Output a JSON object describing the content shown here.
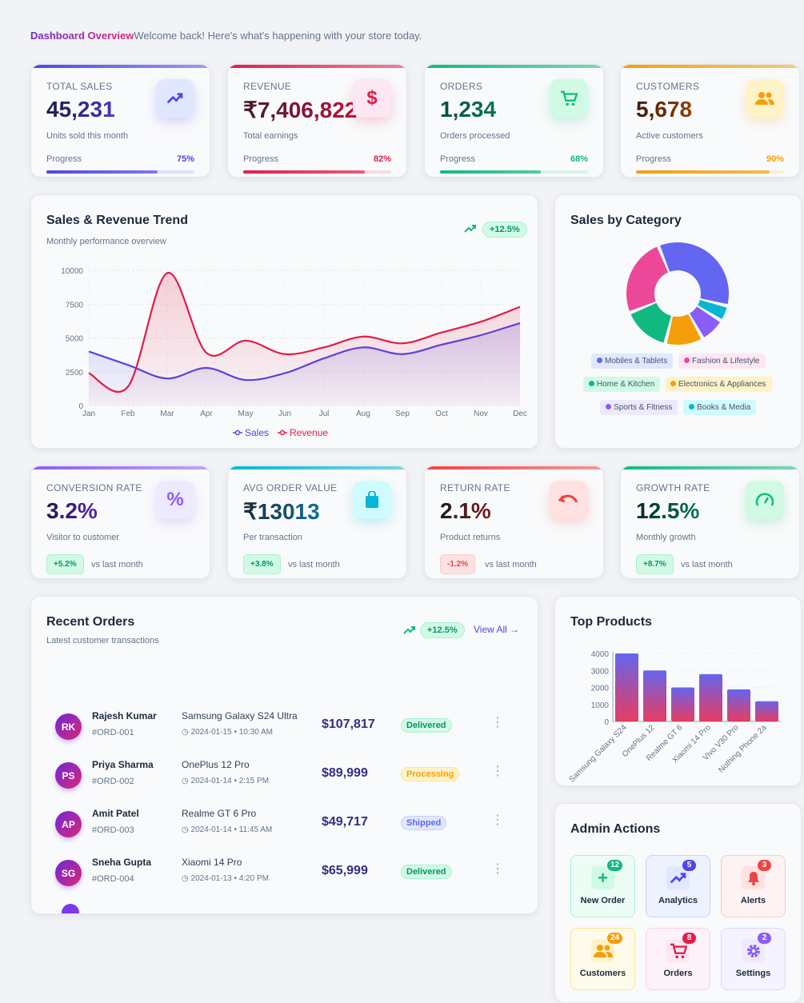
{
  "header": {
    "title": "Dashboard Overview",
    "welcome": "Welcome back! Here's what's happening with your store today."
  },
  "stats": [
    {
      "label": "TOTAL SALES",
      "value": "45,231",
      "sub": "Units sold this month",
      "progress_label": "Progress",
      "progress": "75%",
      "progress_value": 75,
      "icon": "trending-up-icon",
      "color": "#4f46e5"
    },
    {
      "label": "REVENUE",
      "value": "₹7,406,822",
      "sub": "Total earnings",
      "progress_label": "Progress",
      "progress": "82%",
      "progress_value": 82,
      "icon": "dollar-icon",
      "color": "#e11d48"
    },
    {
      "label": "ORDERS",
      "value": "1,234",
      "sub": "Orders processed",
      "progress_label": "Progress",
      "progress": "68%",
      "progress_value": 68,
      "icon": "cart-icon",
      "color": "#10b981"
    },
    {
      "label": "CUSTOMERS",
      "value": "5,678",
      "sub": "Active customers",
      "progress_label": "Progress",
      "progress": "90%",
      "progress_value": 90,
      "icon": "users-icon",
      "color": "#f59e0b"
    }
  ],
  "metrics": [
    {
      "label": "CONVERSION RATE",
      "value": "3.2%",
      "sub": "Visitor to customer",
      "change": "+5.2%",
      "vs": "vs last month",
      "icon": "percent-icon"
    },
    {
      "label": "AVG ORDER VALUE",
      "value": "₹13013",
      "sub": "Per transaction",
      "change": "+3.8%",
      "vs": "vs last month",
      "icon": "shopping-bag-icon"
    },
    {
      "label": "RETURN RATE",
      "value": "2.1%",
      "sub": "Product returns",
      "change": "-1.2%",
      "vs": "vs last month",
      "icon": "undo-icon"
    },
    {
      "label": "GROWTH RATE",
      "value": "12.5%",
      "sub": "Monthly growth",
      "change": "+8.7%",
      "vs": "vs last month",
      "icon": "speedometer-icon"
    }
  ],
  "trend": {
    "title": "Sales & Revenue Trend",
    "subtitle": "Monthly performance overview",
    "badge": "+12.5%"
  },
  "category": {
    "title": "Sales by Category"
  },
  "orders": {
    "title": "Recent Orders",
    "subtitle": "Latest customer transactions",
    "badge": "+12.5%",
    "view_all": "View All",
    "rows": [
      {
        "initials": "RK",
        "name": "Rajesh Kumar",
        "id": "#ORD-001",
        "product": "Samsung Galaxy S24 Ultra",
        "date": "2024-01-15 • 10:30 AM",
        "amount": "$107,817",
        "status": "Delivered"
      },
      {
        "initials": "PS",
        "name": "Priya Sharma",
        "id": "#ORD-002",
        "product": "OnePlus 12 Pro",
        "date": "2024-01-14 • 2:15 PM",
        "amount": "$89,999",
        "status": "Processing"
      },
      {
        "initials": "AP",
        "name": "Amit Patel",
        "id": "#ORD-003",
        "product": "Realme GT 6 Pro",
        "date": "2024-01-14 • 11:45 AM",
        "amount": "$49,717",
        "status": "Shipped"
      },
      {
        "initials": "SG",
        "name": "Sneha Gupta",
        "id": "#ORD-004",
        "product": "Xiaomi 14 Pro",
        "date": "2024-01-13 • 4:20 PM",
        "amount": "$65,999",
        "status": "Delivered"
      }
    ]
  },
  "top_products": {
    "title": "Top Products"
  },
  "admin": {
    "title": "Admin Actions",
    "actions": [
      {
        "label": "New Order",
        "badge": "12",
        "icon": "plus-icon"
      },
      {
        "label": "Analytics",
        "badge": "5",
        "icon": "trending-up-icon"
      },
      {
        "label": "Alerts",
        "badge": "3",
        "icon": "bell-icon"
      },
      {
        "label": "Customers",
        "badge": "24",
        "icon": "users-icon"
      },
      {
        "label": "Orders",
        "badge": "8",
        "icon": "cart-icon"
      },
      {
        "label": "Settings",
        "badge": "2",
        "icon": "gear-icon"
      }
    ]
  },
  "chart_data": [
    {
      "type": "line",
      "title": "Sales & Revenue Trend",
      "categories": [
        "Jan",
        "Feb",
        "Mar",
        "Apr",
        "May",
        "Jun",
        "Jul",
        "Aug",
        "Sep",
        "Oct",
        "Nov",
        "Dec"
      ],
      "series": [
        {
          "name": "Sales",
          "color": "#4f46e5",
          "values": [
            4000,
            3000,
            2000,
            2780,
            1890,
            2390,
            3490,
            4300,
            3800,
            4500,
            5200,
            6100
          ]
        },
        {
          "name": "Revenue",
          "color": "#e11d48",
          "values": [
            2400,
            1400,
            9800,
            3900,
            4800,
            3800,
            4300,
            5100,
            4600,
            5400,
            6200,
            7300
          ]
        }
      ],
      "yticks": [
        0,
        2500,
        5000,
        7500,
        10000
      ],
      "ylim": [
        0,
        10000
      ],
      "grid": true,
      "legend": "bottom"
    },
    {
      "type": "pie",
      "title": "Sales by Category",
      "categories": [
        "Mobiles & Tablets",
        "Fashion & Lifestyle",
        "Home & Kitchen",
        "Electronics & Appliances",
        "Sports & Fitness",
        "Books & Media"
      ],
      "values": [
        35,
        25,
        15,
        12,
        8,
        5
      ],
      "colors": [
        "#6366f1",
        "#ec4899",
        "#10b981",
        "#f59e0b",
        "#8b5cf6",
        "#06b6d4"
      ],
      "legend": "bottom"
    },
    {
      "type": "bar",
      "title": "Top Products",
      "categories": [
        "Samsung Galaxy S24",
        "OnePlus 12",
        "Realme GT 6",
        "Xiaomi 14 Pro",
        "Vivo V30 Pro",
        "Nothing Phone 2a"
      ],
      "values": [
        4000,
        3000,
        2000,
        2780,
        1890,
        1190
      ],
      "yticks": [
        0,
        1000,
        2000,
        3000,
        4000
      ],
      "ylim": [
        0,
        4000
      ],
      "grid": true
    }
  ]
}
